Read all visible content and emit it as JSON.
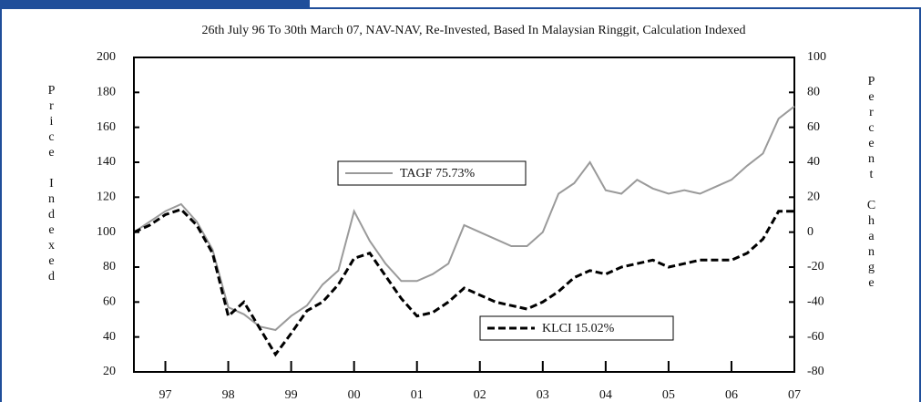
{
  "chart_data": {
    "type": "line",
    "title": "26th July 96 To 30th March 07, NAV-NAV, Re-Invested, Based In Malaysian Ringgit, Calculation Indexed",
    "ylabel": "Price Indexed",
    "y2label": "Percent Change",
    "categories": [
      null,
      null,
      "97",
      null,
      null,
      null,
      "98",
      null,
      null,
      null,
      "99",
      null,
      null,
      null,
      "00",
      null,
      null,
      null,
      "01",
      null,
      null,
      null,
      "02",
      null,
      null,
      null,
      "03",
      null,
      null,
      null,
      "04",
      null,
      null,
      null,
      "05",
      null,
      null,
      null,
      "06",
      null,
      null,
      null,
      "07"
    ],
    "series": [
      {
        "name": "TAGF 75.73%",
        "color": "#9a9a9a",
        "values": [
          100,
          106,
          112,
          116,
          106,
          90,
          57,
          53,
          46,
          44,
          52,
          58,
          70,
          78,
          112,
          95,
          82,
          72,
          72,
          76,
          82,
          104,
          100,
          96,
          92,
          92,
          100,
          122,
          128,
          140,
          124,
          122,
          130,
          125,
          122,
          124,
          122,
          126,
          130,
          138,
          145,
          165,
          172
        ]
      },
      {
        "name": "KLCI 15.02%",
        "color": "#000000",
        "values": [
          100,
          104,
          110,
          113,
          104,
          88,
          52,
          60,
          45,
          30,
          42,
          55,
          60,
          70,
          85,
          88,
          75,
          62,
          52,
          54,
          60,
          68,
          64,
          60,
          58,
          56,
          60,
          66,
          74,
          78,
          76,
          80,
          82,
          84,
          80,
          82,
          84,
          84,
          84,
          88,
          96,
          112,
          112
        ]
      }
    ],
    "ylim": [
      20,
      200
    ],
    "yticks": [
      20,
      40,
      60,
      80,
      100,
      120,
      140,
      160,
      180,
      200
    ],
    "y2lim": [
      -80,
      100
    ],
    "y2ticks": [
      -80,
      -60,
      -40,
      -20,
      0,
      20,
      40,
      60,
      80,
      100
    ]
  }
}
